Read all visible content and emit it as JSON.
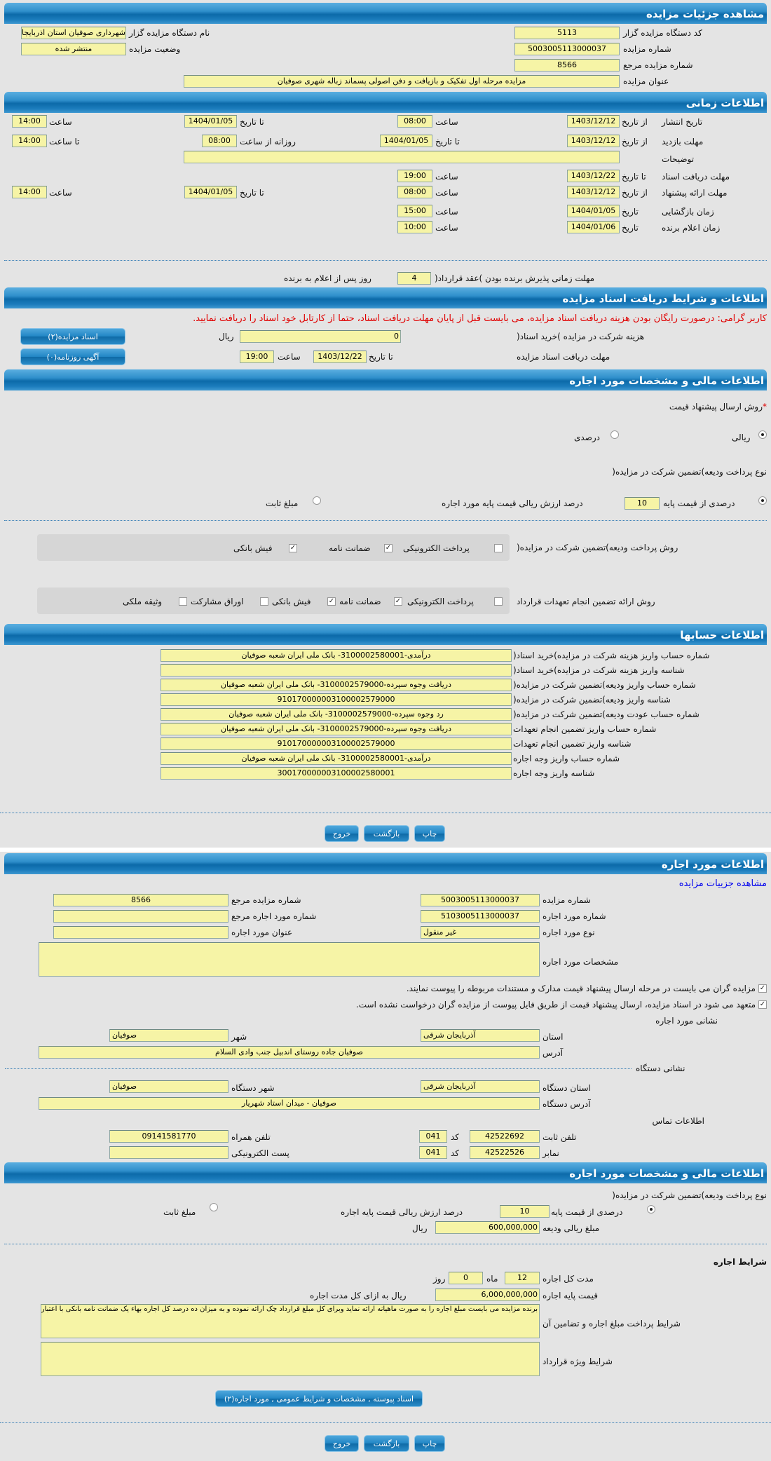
{
  "colors": {
    "header": "#1b7cbc",
    "field_bg": "#f6f4a6",
    "page_bg": "#e4e4e4",
    "warning": "#e00000",
    "link": "#0000ee"
  },
  "s1": {
    "title": "مشاهده جزئیات مزایده",
    "org_code_label": "کد دستگاه مزایده گزار",
    "org_code": "5113",
    "auction_no_label": "شماره مزایده",
    "auction_no": "5003005113000037",
    "ref_no_label": "شماره مزایده مرجع",
    "ref_no": "8566",
    "auction_title_label": "عنوان مزایده",
    "auction_title": "مزایده مرحله اول تفکیک و بازیافت و دفن اصولی پسماند زباله شهری صوفیان",
    "org_name_label": "نام دستگاه مزایده گزار",
    "org_name": "شهرداری صوفیان استان اذربایجان",
    "status_label": "وضعیت مزایده",
    "status": "منتشر شده"
  },
  "s2": {
    "title": "اطلاعات زمانی",
    "from_date": "از تاریخ",
    "to_date": "تا تاریخ",
    "date": "تاریخ",
    "hour": "ساعت",
    "to_hour": "تا ساعت",
    "daily_from_hour": "روزانه از ساعت",
    "publish_label": "تاریخ انتشار",
    "publish_from": "1403/12/12",
    "publish_from_time": "08:00",
    "publish_to": "1404/01/05",
    "publish_to_time": "14:00",
    "visit_label": "مهلت بازدید",
    "visit_from": "1403/12/12",
    "visit_to": "1404/01/05",
    "visit_daily_from": "08:00",
    "visit_daily_to": "14:00",
    "notes_label": "توضیحات",
    "notes": "",
    "docs_label": "مهلت دریافت اسناد",
    "docs_to": "1403/12/22",
    "docs_time": "19:00",
    "offer_label": "مهلت ارائه پیشنهاد",
    "offer_from": "1403/12/12",
    "offer_from_time": "08:00",
    "offer_to": "1404/01/05",
    "offer_to_time": "14:00",
    "opening_label": "زمان بازگشایی",
    "opening_date": "1404/01/05",
    "opening_time": "15:00",
    "winner_label": "زمان اعلام برنده",
    "winner_date": "1404/01/06",
    "winner_time": "10:00",
    "contract_label": "مهلت زمانی پذیرش برنده بودن )عقد قرارداد(",
    "contract_days": "4",
    "contract_suffix": "روز پس از اعلام به برنده"
  },
  "s3": {
    "title": "اطلاعات و شرایط دریافت اسناد مزایده",
    "warning": "کاربر گرامی: درصورت رایگان بودن هزینه دریافت اسناد مزایده، می بایست قبل از پایان مهلت دریافت اسناد، حتما از کارتابل خود اسناد را دریافت نمایید.",
    "fee_label": "هزینه شرکت در مزایده )خرید اسناد(",
    "fee": "0",
    "rial": "ریال",
    "deadline_label": "مهلت دریافت اسناد مزایده",
    "to_date": "تا تاریخ",
    "deadline_date": "1403/12/22",
    "hour": "ساعت",
    "deadline_time": "19:00",
    "docs_button": "اسناد مزایده(۲)",
    "ads_button": "آگهی روزنامه(۰)"
  },
  "s4": {
    "title": "اطلاعات مالی و مشخصات مورد اجاره",
    "price_method_label": "روش ارسال پیشنهاد قیمت",
    "required_mark": "*",
    "riali": "ریالی",
    "darsadi": "درصدی",
    "price_method_selected": "ریالی",
    "deposit_type_label": "نوع پرداخت ودیعه)تضمین شرکت در مزایده(",
    "percent_option": "درصدی از قیمت پایه",
    "percent_value": "10",
    "percent_suffix": "درصد ارزش ریالی قیمت پایه مورد اجاره",
    "fixed_option": "مبلغ ثابت",
    "deposit_type_selected": "درصدی از قیمت پایه",
    "deposit_method_label": "روش پرداخت ودیعه)تضمین شرکت در مزایده(",
    "deposit_methods": [
      {
        "label": "پرداخت الکترونیکی",
        "checked": false
      },
      {
        "label": "ضمانت نامه",
        "checked": true
      },
      {
        "label": "فیش بانکی",
        "checked": true
      }
    ],
    "guarantee_label": "روش ارائه تضمین انجام تعهدات قرارداد",
    "guarantee_methods": [
      {
        "label": "پرداخت الکترونیکی",
        "checked": false
      },
      {
        "label": "ضمانت نامه",
        "checked": true
      },
      {
        "label": "فیش بانکی",
        "checked": true
      },
      {
        "label": "اوراق مشارکت",
        "checked": false
      },
      {
        "label": "وثیقه ملکی",
        "checked": false
      }
    ]
  },
  "s5": {
    "title": "اطلاعات حسابها",
    "rows": [
      {
        "label": "شماره حساب واریز هزینه شرکت در مزایده)خرید اسناد(",
        "value": "درآمدی-3100002580001- بانک ملی ایران شعبه صوفیان"
      },
      {
        "label": "شناسه واریز هزینه شرکت در مزایده)خرید اسناد(",
        "value": ""
      },
      {
        "label": "شماره حساب واریز ودیعه)تضمین شرکت در مزایده(",
        "value": "دریافت وجوه سپرده-3100002579000- بانک ملی ایران شعبه صوفیان"
      },
      {
        "label": "شناسه واریز ودیعه)تضمین شرکت در مزایده(",
        "value": "910170000003100002579000"
      },
      {
        "label": "شماره حساب عودت ودیعه)تضمین شرکت در مزایده(",
        "value": "رد وجوه سپرده-3100002579000- بانک ملی ایران شعبه صوفیان"
      },
      {
        "label": "شماره حساب واریز تضمین انجام تعهدات",
        "value": "دریافت وجوه سپرده-3100002579000- بانک ملی ایران شعبه صوفیان"
      },
      {
        "label": "شناسه واریز تضمین انجام تعهدات",
        "value": "910170000003100002579000"
      },
      {
        "label": "شماره حساب واریز وجه اجاره",
        "value": "درآمدی-3100002580001- بانک ملی ایران شعبه صوفیان"
      },
      {
        "label": "شناسه واریز وجه اجاره",
        "value": "300170000003100002580001"
      }
    ]
  },
  "actions": {
    "print": "چاپ",
    "back": "بازگشت",
    "exit": "خروج"
  },
  "s6": {
    "title": "اطلاعات مورد اجاره",
    "details_link": "مشاهده جزییات مزایده",
    "auction_no_label": "شماره مزایده",
    "auction_no": "5003005113000037",
    "ref_no_label": "شماره مزایده مرجع",
    "ref_no": "8566",
    "lease_no_label": "شماره مورد اجاره",
    "lease_no": "5103005113000037",
    "lease_ref_label": "شماره مورد اجاره مرجع",
    "lease_ref": "",
    "lease_type_label": "نوع مورد اجاره",
    "lease_type": "غیر منقول",
    "lease_title_label": "عنوان مورد اجاره",
    "lease_title": "",
    "specs_label": "مشخصات مورد اجاره",
    "specs": "",
    "check1": "مزایده گران می بایست در مرحله ارسال پیشنهاد قیمت مدارک و مستندات مربوطه را پیوست نمایند.",
    "check2": "متعهد می شود در اسناد مزایده، ارسال پیشنهاد قیمت از طریق فایل پیوست از مزایده گران درخواست نشده است.",
    "lease_address_title": "نشانی مورد اجاره",
    "province_label": "استان",
    "province": "آذربایجان شرقی",
    "city_label": "شهر",
    "city": "صوفیان",
    "address_label": "آدرس",
    "address": "صوفیان جاده روستای اندبیل جنب وادی السلام",
    "org_address_title": "نشانی دستگاه",
    "org_province_label": "استان دستگاه",
    "org_province": "آذربایجان شرقی",
    "org_city_label": "شهر دستگاه",
    "org_city": "صوفیان",
    "org_address_label": "آدرس دستگاه",
    "org_address": "صوفیان - میدان استاد شهریار",
    "contact_title": "اطلاعات تماس",
    "phone_label": "تلفن ثابت",
    "phone": "42522692",
    "code_label": "کد",
    "phone_code": "041",
    "mobile_label": "تلفن همراه",
    "mobile": "09141581770",
    "fax_label": "نمابر",
    "fax": "42522526",
    "fax_code": "041",
    "email_label": "پست الکترونیکی",
    "email": ""
  },
  "s7": {
    "title": "اطلاعات مالی و مشخصات مورد اجاره",
    "deposit_type_label": "نوع پرداخت ودیعه)تضمین شرکت در مزایده(",
    "percent_option": "درصدی از قیمت پایه",
    "percent_value": "10",
    "percent_suffix": "درصد ارزش ریالی قیمت پایه اجاره",
    "fixed_option": "مبلغ ثابت",
    "deposit_amount_label": "مبلغ ریالی ودیعه",
    "deposit_amount": "600,000,000",
    "rial": "ریال",
    "terms_title": "شرایط اجاره",
    "duration_label": "مدت کل اجاره",
    "months": "12",
    "month_unit": "ماه",
    "days": "0",
    "day_unit": "روز",
    "base_price_label": "قیمت پایه اجاره",
    "base_price": "6,000,000,000",
    "base_price_suffix": "ریال به ازای کل مدت اجاره",
    "payment_terms_label": "شرایط پرداخت مبلغ اجاره و تضامین آن",
    "payment_terms": "برنده مزایده می بایست مبلغ اجاره را به صورت ماهیانه ارائه نماید وبرای کل مبلغ قرارداد چک ارائه نموده و به میزان ده درصد کل اجاره بهاء یک ضمانت نامه بانکی با اعتبار یکساله قابل تمدید ارائه نماید",
    "special_terms_label": "شرایط ویژه قرارداد",
    "special_terms": "",
    "attachments_button": "اسناد پیوسته , مشخصات و شرایط عمومی , مورد اجاره(۲)"
  }
}
